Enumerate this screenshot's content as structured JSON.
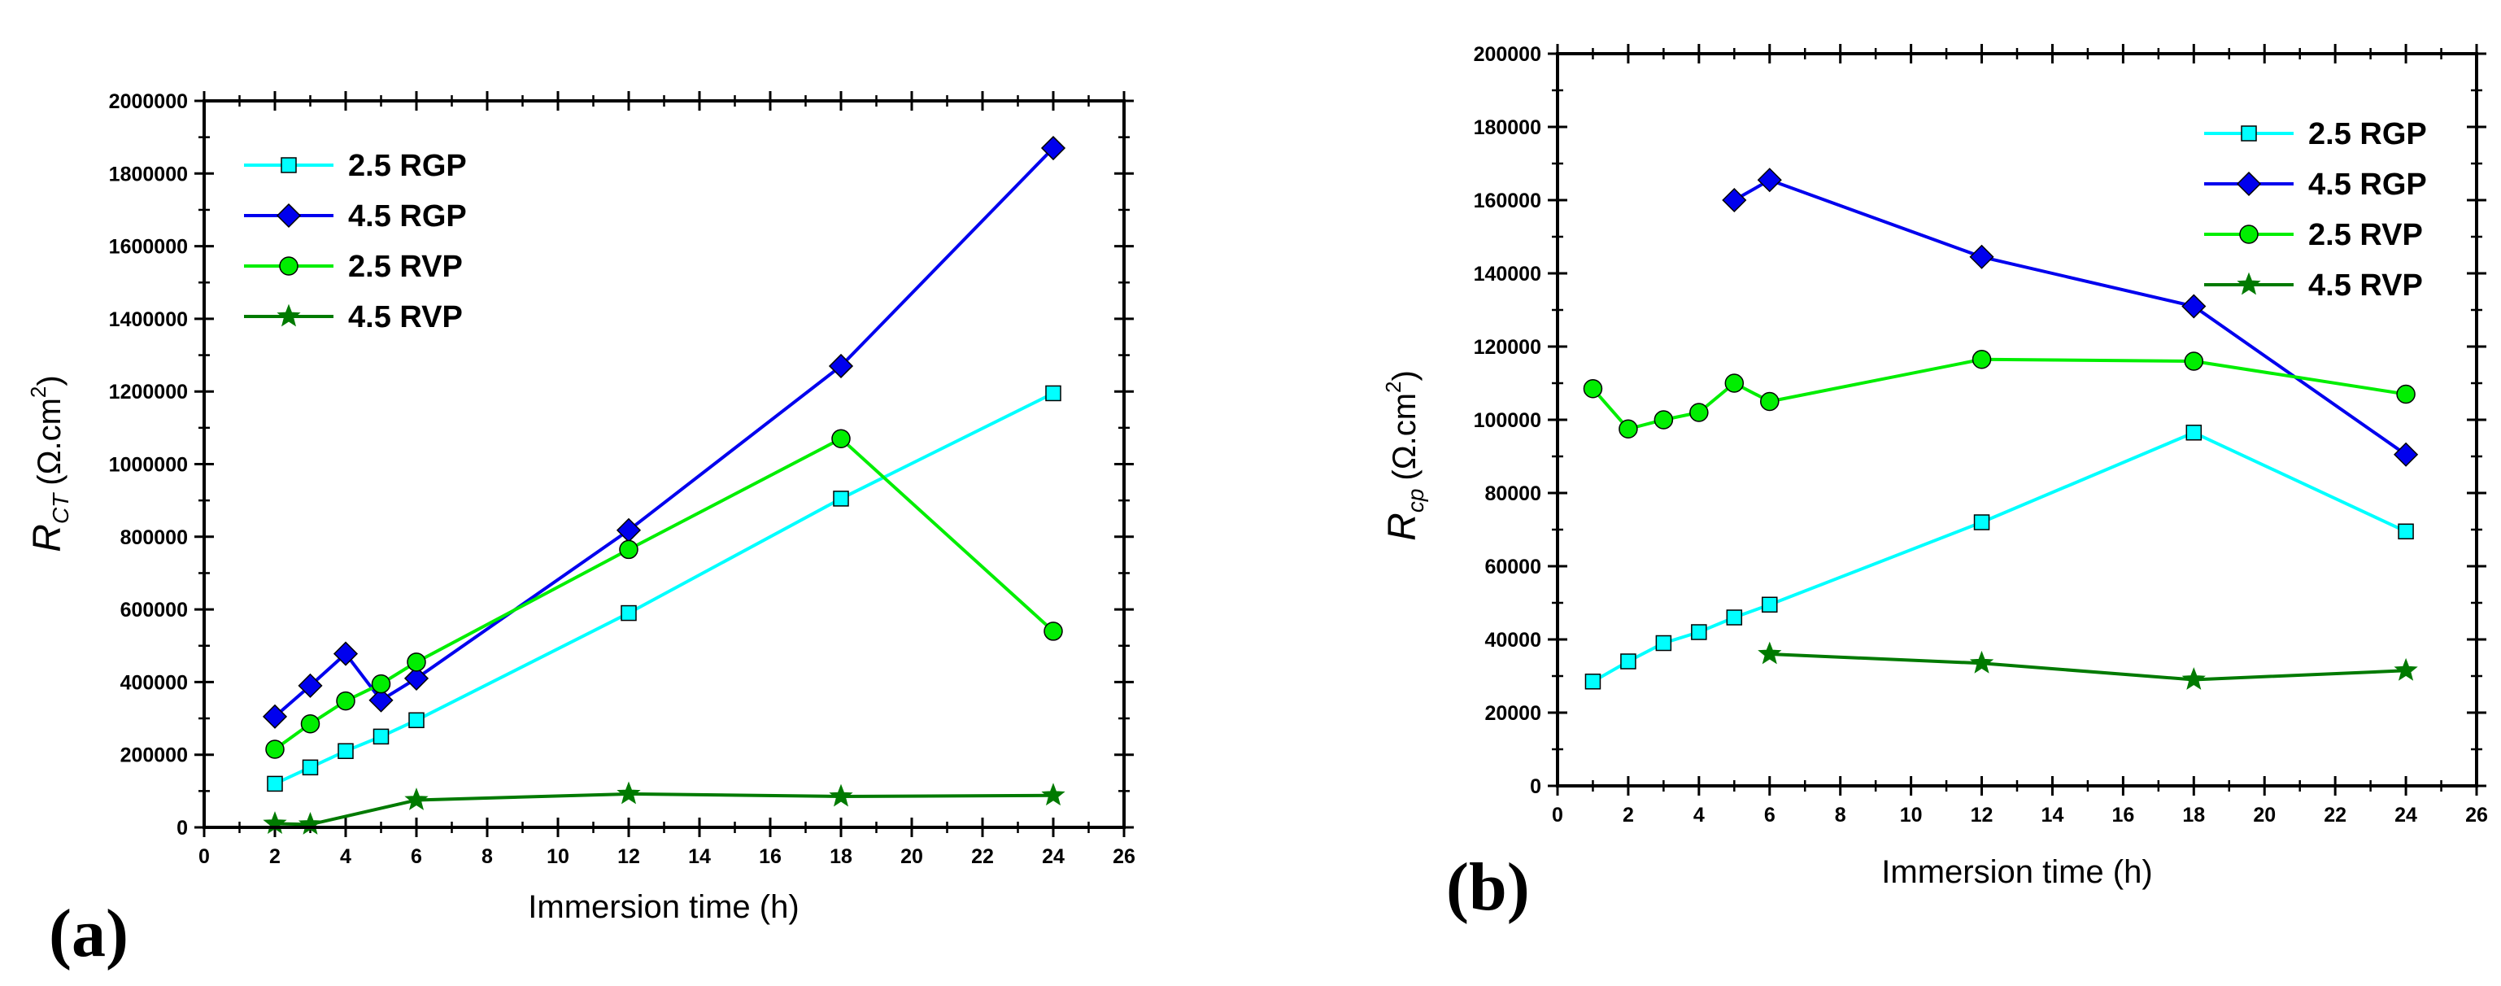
{
  "chart_data": [
    {
      "type": "line",
      "panel_label": "(a)",
      "xlabel": "Immersion time (h)",
      "ylabel": {
        "symbol": "R",
        "subscript": "CT",
        "unit_prefix": "(Ω.cm",
        "unit_sup": "2",
        "unit_suffix": ")"
      },
      "xlim": [
        0,
        26
      ],
      "ylim": [
        0,
        2000000
      ],
      "x_ticks": [
        0,
        2,
        4,
        6,
        8,
        10,
        12,
        14,
        16,
        18,
        20,
        22,
        24,
        26
      ],
      "y_ticks": [
        0,
        200000,
        400000,
        600000,
        800000,
        1000000,
        1200000,
        1400000,
        1600000,
        1800000,
        2000000
      ],
      "legend_position": "top-left",
      "series": [
        {
          "name": "2.5 RGP",
          "color": "#00FFFF",
          "marker": "square",
          "x": [
            2,
            3,
            4,
            5,
            6,
            12,
            18,
            24
          ],
          "y": [
            120000,
            165000,
            210000,
            250000,
            295000,
            590000,
            905000,
            1195000
          ]
        },
        {
          "name": "4.5 RGP",
          "color": "#0000EE",
          "marker": "diamond",
          "x": [
            2,
            3,
            4,
            5,
            6,
            12,
            18,
            24
          ],
          "y": [
            305000,
            390000,
            478000,
            350000,
            410000,
            818000,
            1270000,
            1870000
          ]
        },
        {
          "name": "2.5 RVP",
          "color": "#00EE00",
          "marker": "circle",
          "x": [
            2,
            3,
            4,
            5,
            6,
            12,
            18,
            24
          ],
          "y": [
            215000,
            285000,
            348000,
            395000,
            455000,
            765000,
            1070000,
            540000
          ]
        },
        {
          "name": "4.5 RVP",
          "color": "#007A00",
          "marker": "star",
          "x": [
            2,
            3,
            6,
            12,
            18,
            24
          ],
          "y": [
            10000,
            8000,
            75000,
            92000,
            85000,
            88000
          ]
        }
      ]
    },
    {
      "type": "line",
      "panel_label": "(b)",
      "xlabel": "Immersion time (h)",
      "ylabel": {
        "symbol": "R",
        "subscript": "cp",
        "unit_prefix": "(Ω.cm",
        "unit_sup": "2",
        "unit_suffix": ")"
      },
      "xlim": [
        0,
        26
      ],
      "ylim": [
        0,
        200000
      ],
      "x_ticks": [
        0,
        2,
        4,
        6,
        8,
        10,
        12,
        14,
        16,
        18,
        20,
        22,
        24,
        26
      ],
      "y_ticks": [
        0,
        20000,
        40000,
        60000,
        80000,
        100000,
        120000,
        140000,
        160000,
        180000,
        200000
      ],
      "legend_position": "top-right",
      "series": [
        {
          "name": "2.5 RGP",
          "color": "#00FFFF",
          "marker": "square",
          "x": [
            1,
            2,
            3,
            4,
            5,
            6,
            12,
            18,
            24
          ],
          "y": [
            28500,
            34000,
            39000,
            42000,
            46000,
            49500,
            72000,
            96500,
            69500
          ]
        },
        {
          "name": "4.5 RGP",
          "color": "#0000EE",
          "marker": "diamond",
          "x": [
            5,
            6,
            12,
            18,
            24
          ],
          "y": [
            160000,
            165500,
            144500,
            131000,
            90500
          ]
        },
        {
          "name": "2.5 RVP",
          "color": "#00EE00",
          "marker": "circle",
          "x": [
            1,
            2,
            3,
            4,
            5,
            6,
            12,
            18,
            24
          ],
          "y": [
            108500,
            97500,
            100000,
            102000,
            110000,
            105000,
            116500,
            116000,
            107000
          ]
        },
        {
          "name": "4.5 RVP",
          "color": "#007A00",
          "marker": "star",
          "x": [
            6,
            12,
            18,
            24
          ],
          "y": [
            36000,
            33500,
            29000,
            31500
          ]
        }
      ]
    }
  ]
}
